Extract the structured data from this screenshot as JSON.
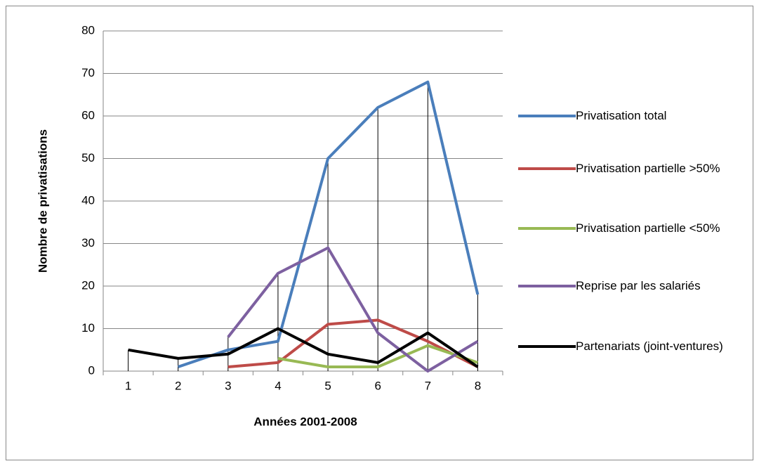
{
  "chart_data": {
    "type": "line",
    "xlabel": "Années 2001-2008",
    "ylabel": "Nombre de privatisations",
    "categories": [
      "1",
      "2",
      "3",
      "4",
      "5",
      "6",
      "7",
      "8"
    ],
    "series": [
      {
        "name": "Privatisation total",
        "color": "#4a7ebb",
        "values": [
          null,
          1,
          5,
          7,
          50,
          62,
          68,
          18
        ]
      },
      {
        "name": "Privatisation partielle >50%",
        "color": "#be4b48",
        "values": [
          null,
          null,
          1,
          2,
          11,
          12,
          7,
          1
        ]
      },
      {
        "name": "Privatisation partielle <50%",
        "color": "#98b954",
        "values": [
          null,
          null,
          null,
          3,
          1,
          1,
          6,
          2
        ]
      },
      {
        "name": "Reprise par les salariés",
        "color": "#7d60a0",
        "values": [
          null,
          null,
          8,
          23,
          29,
          9,
          0,
          7
        ]
      },
      {
        "name": "Partenariats (joint-ventures)",
        "color": "#000000",
        "values": [
          5,
          3,
          4,
          10,
          4,
          2,
          9,
          1
        ]
      }
    ],
    "ylim": [
      0,
      80
    ],
    "yticks": [
      0,
      10,
      20,
      30,
      40,
      50,
      60,
      70,
      80
    ],
    "grid": true,
    "drop_lines": true,
    "legend": "right"
  }
}
